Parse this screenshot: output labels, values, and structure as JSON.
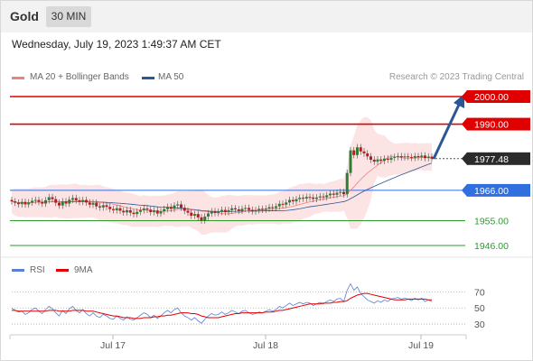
{
  "header": {
    "symbol": "Gold",
    "timeframe": "30 MIN"
  },
  "datetime": "Wednesday, July 19, 2023 1:49:37 AM CET",
  "legend": {
    "ma20_label": "MA 20 + Bollinger Bands",
    "ma50_label": "MA 50",
    "ma20_color": "#f08080",
    "ma50_color": "#2b5797",
    "copyright": "Research © 2023 Trading Central"
  },
  "rsi_legend": {
    "rsi_label": "RSI",
    "ma_label": "9MA",
    "rsi_color": "#5b7fd4",
    "ma_color": "#e00000"
  },
  "levels": [
    {
      "label": "2000.00",
      "value": 2000.0,
      "style": "resistance",
      "color": "#e00000"
    },
    {
      "label": "1990.00",
      "value": 1990.0,
      "style": "resistance",
      "color": "#e00000"
    },
    {
      "label": "1977.48",
      "value": 1977.48,
      "style": "current",
      "color": "#333333"
    },
    {
      "label": "1966.00",
      "value": 1966.0,
      "style": "pivot",
      "color": "#2f6fe0"
    },
    {
      "label": "1955.00",
      "value": 1955.0,
      "style": "support",
      "color": "#2e9a2e"
    },
    {
      "label": "1946.00",
      "value": 1946.0,
      "style": "support",
      "color": "#2e9a2e"
    }
  ],
  "rsi_levels": [
    "70",
    "50",
    "30"
  ],
  "x_ticks": [
    "Jul 17",
    "Jul 18",
    "Jul 19"
  ],
  "chart_data": {
    "type": "candlestick",
    "price_range": [
      1942,
      2005
    ],
    "rsi_range": [
      20,
      85
    ],
    "closes": [
      1962.0,
      1961.5,
      1961.0,
      1961.8,
      1960.9,
      1961.6,
      1962.2,
      1962.5,
      1961.8,
      1961.2,
      1962.4,
      1963.5,
      1962.8,
      1961.5,
      1960.5,
      1962.0,
      1961.2,
      1962.6,
      1963.2,
      1962.4,
      1961.8,
      1962.5,
      1961.6,
      1960.8,
      1961.5,
      1960.2,
      1959.8,
      1960.6,
      1960.0,
      1959.2,
      1958.8,
      1959.5,
      1958.6,
      1958.0,
      1958.8,
      1957.9,
      1957.4,
      1958.2,
      1958.8,
      1959.4,
      1959.0,
      1958.1,
      1958.7,
      1957.6,
      1958.4,
      1959.2,
      1960.0,
      1959.3,
      1960.5,
      1960.9,
      1959.7,
      1958.6,
      1957.9,
      1956.8,
      1957.4,
      1956.2,
      1955.1,
      1956.5,
      1957.6,
      1958.4,
      1957.8,
      1958.2,
      1958.9,
      1958.1,
      1958.8,
      1959.5,
      1959.1,
      1958.6,
      1959.3,
      1959.6,
      1958.9,
      1958.4,
      1958.8,
      1959.3,
      1959.0,
      1959.4,
      1959.9,
      1959.6,
      1960.2,
      1961.1,
      1960.8,
      1961.6,
      1962.5,
      1962.0,
      1962.8,
      1963.3,
      1963.0,
      1963.6,
      1963.4,
      1962.9,
      1963.4,
      1963.8,
      1963.5,
      1964.2,
      1964.8,
      1964.4,
      1965.1,
      1965.4,
      1964.6,
      1972.3,
      1980.5,
      1978.8,
      1981.6,
      1980.1,
      1979.4,
      1978.3,
      1977.1,
      1976.4,
      1977.2,
      1976.7,
      1977.5,
      1977.1,
      1977.8,
      1978.1,
      1978.4,
      1978.0,
      1978.3,
      1978.1,
      1977.8,
      1978.4,
      1978.0,
      1978.6,
      1977.7,
      1978.2,
      1977.48
    ],
    "lows_offset": 1.2,
    "rsi": [
      50,
      47,
      45,
      46,
      42,
      44,
      48,
      50,
      46,
      43,
      48,
      52,
      49,
      44,
      40,
      47,
      43,
      49,
      52,
      47,
      44,
      48,
      43,
      40,
      44,
      40,
      38,
      42,
      40,
      37,
      36,
      40,
      37,
      35,
      39,
      36,
      35,
      38,
      41,
      44,
      42,
      38,
      41,
      37,
      40,
      44,
      47,
      44,
      48,
      50,
      44,
      40,
      38,
      35,
      38,
      34,
      31,
      36,
      40,
      43,
      41,
      42,
      45,
      42,
      44,
      47,
      45,
      43,
      46,
      47,
      44,
      42,
      43,
      45,
      44,
      46,
      48,
      46,
      48,
      52,
      50,
      53,
      56,
      53,
      55,
      57,
      55,
      57,
      56,
      53,
      55,
      57,
      55,
      58,
      60,
      58,
      61,
      62,
      58,
      72,
      80,
      72,
      76,
      68,
      64,
      60,
      58,
      56,
      59,
      57,
      60,
      58,
      61,
      62,
      63,
      61,
      62,
      61,
      59,
      62,
      60,
      62,
      58,
      60,
      58
    ],
    "rsi_ma9": [
      47,
      47,
      46,
      46,
      46,
      46,
      46,
      46,
      46,
      46,
      46,
      47,
      47,
      47,
      46,
      46,
      46,
      46,
      47,
      47,
      47,
      47,
      46,
      46,
      46,
      45,
      44,
      43,
      42,
      41,
      40,
      40,
      39,
      38,
      38,
      38,
      37,
      37,
      37,
      38,
      38,
      38,
      39,
      39,
      40,
      40,
      41,
      41,
      42,
      43,
      44,
      44,
      44,
      43,
      43,
      42,
      40,
      39,
      38,
      38,
      38,
      38,
      39,
      40,
      41,
      42,
      43,
      43,
      44,
      44,
      44,
      44,
      44,
      44,
      44,
      45,
      45,
      45,
      46,
      47,
      47,
      48,
      49,
      50,
      51,
      52,
      53,
      54,
      55,
      55,
      55,
      55,
      56,
      56,
      56,
      57,
      57,
      58,
      58,
      59,
      62,
      64,
      66,
      67,
      68,
      68,
      67,
      66,
      65,
      64,
      63,
      62,
      61,
      60,
      60,
      60,
      60,
      61,
      61,
      61,
      61,
      61,
      61,
      60,
      60
    ]
  }
}
